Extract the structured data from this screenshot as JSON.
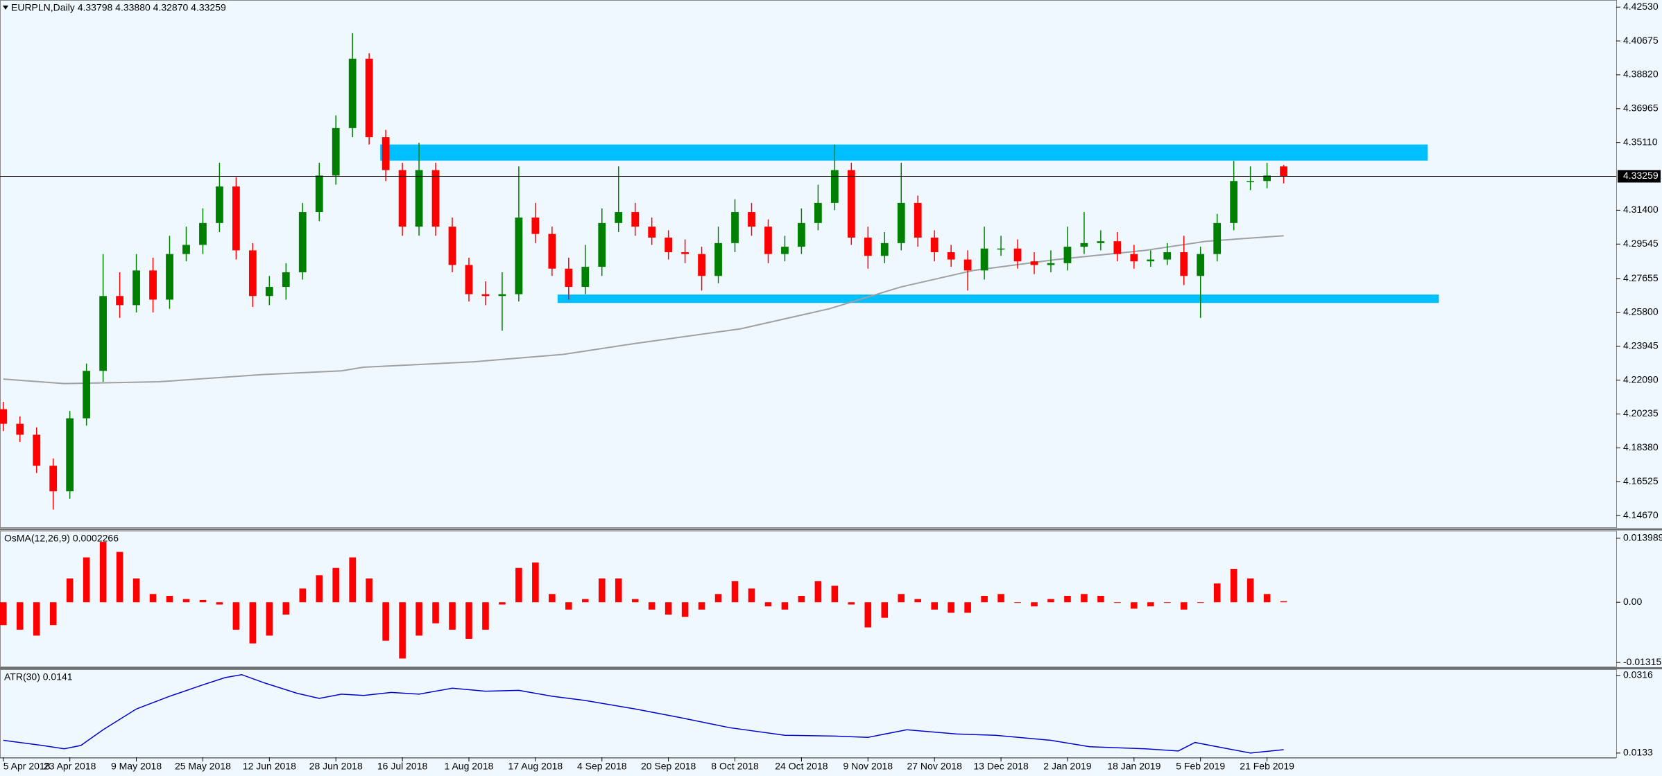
{
  "chart_data": [
    {
      "type": "candlestick",
      "legend": "EURPLN,Daily  4.33798 4.33880 4.32870 4.33259",
      "x": [
        0,
        3,
        6,
        9,
        12,
        15,
        18,
        21,
        24,
        27,
        30,
        33,
        36,
        39,
        42,
        45,
        48,
        51,
        54,
        57,
        60,
        63,
        66,
        69,
        72,
        75,
        78,
        81,
        84,
        87,
        90,
        93,
        96,
        99,
        102,
        105,
        108,
        111,
        114,
        117,
        120,
        123,
        126,
        129,
        132,
        135,
        138,
        141,
        144,
        147,
        150,
        153,
        156,
        159,
        162,
        165,
        168,
        171,
        174,
        177,
        180,
        183,
        186,
        189,
        192,
        195,
        198,
        201,
        204,
        207,
        210,
        213,
        216,
        219,
        222,
        225,
        228,
        231
      ],
      "open": [
        4.205,
        4.197,
        4.191,
        4.174,
        4.16,
        4.2,
        4.226,
        4.267,
        4.262,
        4.281,
        4.265,
        4.29,
        4.295,
        4.307,
        4.327,
        4.292,
        4.267,
        4.272,
        4.28,
        4.313,
        4.333,
        4.359,
        4.397,
        4.354,
        4.336,
        4.305,
        4.336,
        4.305,
        4.284,
        4.268,
        4.267,
        4.268,
        4.31,
        4.301,
        4.282,
        4.272,
        4.283,
        4.307,
        4.313,
        4.305,
        4.299,
        4.291,
        4.29,
        4.278,
        4.296,
        4.313,
        4.305,
        4.29,
        4.294,
        4.307,
        4.318,
        4.336,
        4.299,
        4.289,
        4.296,
        4.318,
        4.299,
        4.291,
        4.287,
        4.281,
        4.293,
        4.293,
        4.286,
        4.284,
        4.285,
        4.294,
        4.296,
        4.297,
        4.29,
        4.286,
        4.287,
        4.291,
        4.278,
        4.29,
        4.307,
        4.33,
        4.33,
        4.33798
      ],
      "high": [
        4.209,
        4.201,
        4.195,
        4.178,
        4.204,
        4.23,
        4.29,
        4.28,
        4.29,
        4.288,
        4.3,
        4.305,
        4.315,
        4.34,
        4.332,
        4.296,
        4.278,
        4.285,
        4.318,
        4.34,
        4.366,
        4.411,
        4.4,
        4.358,
        4.34,
        4.351,
        4.34,
        4.31,
        4.288,
        4.275,
        4.28,
        4.338,
        4.318,
        4.305,
        4.288,
        4.295,
        4.315,
        4.338,
        4.318,
        4.31,
        4.303,
        4.298,
        4.294,
        4.305,
        4.32,
        4.318,
        4.309,
        4.3,
        4.315,
        4.328,
        4.35,
        4.34,
        4.305,
        4.302,
        4.34,
        4.322,
        4.303,
        4.295,
        4.292,
        4.305,
        4.3,
        4.298,
        4.291,
        4.292,
        4.305,
        4.313,
        4.303,
        4.302,
        4.295,
        4.292,
        4.296,
        4.3,
        4.294,
        4.312,
        4.341,
        4.338,
        4.34,
        4.3388
      ],
      "low": [
        4.193,
        4.187,
        4.17,
        4.15,
        4.156,
        4.196,
        4.22,
        4.255,
        4.258,
        4.258,
        4.26,
        4.286,
        4.29,
        4.302,
        4.287,
        4.261,
        4.262,
        4.265,
        4.276,
        4.308,
        4.328,
        4.354,
        4.35,
        4.33,
        4.3,
        4.3,
        4.3,
        4.28,
        4.264,
        4.262,
        4.248,
        4.264,
        4.296,
        4.278,
        4.265,
        4.268,
        4.278,
        4.302,
        4.3,
        4.295,
        4.287,
        4.285,
        4.27,
        4.274,
        4.291,
        4.3,
        4.285,
        4.286,
        4.29,
        4.303,
        4.314,
        4.295,
        4.282,
        4.285,
        4.292,
        4.294,
        4.286,
        4.283,
        4.27,
        4.276,
        4.289,
        4.282,
        4.279,
        4.28,
        4.281,
        4.29,
        4.292,
        4.286,
        4.282,
        4.283,
        4.284,
        4.273,
        4.255,
        4.286,
        4.303,
        4.325,
        4.326,
        4.3287
      ],
      "close": [
        4.197,
        4.191,
        4.174,
        4.16,
        4.2,
        4.226,
        4.267,
        4.262,
        4.281,
        4.265,
        4.29,
        4.295,
        4.307,
        4.327,
        4.292,
        4.267,
        4.272,
        4.28,
        4.313,
        4.333,
        4.359,
        4.397,
        4.354,
        4.336,
        4.305,
        4.336,
        4.305,
        4.284,
        4.268,
        4.267,
        4.268,
        4.31,
        4.301,
        4.282,
        4.272,
        4.283,
        4.307,
        4.313,
        4.305,
        4.299,
        4.291,
        4.29,
        4.278,
        4.296,
        4.313,
        4.305,
        4.29,
        4.294,
        4.307,
        4.318,
        4.336,
        4.299,
        4.289,
        4.296,
        4.318,
        4.299,
        4.291,
        4.287,
        4.281,
        4.293,
        4.293,
        4.286,
        4.284,
        4.285,
        4.294,
        4.296,
        4.297,
        4.29,
        4.286,
        4.287,
        4.291,
        4.278,
        4.29,
        4.307,
        4.33,
        4.33,
        4.333,
        4.33259
      ],
      "up_color": "#008000",
      "down_color": "#ff0000",
      "ma": {
        "x": [
          0,
          11,
          28,
          47,
          61,
          65,
          85,
          101,
          114,
          133,
          149,
          162,
          175,
          190,
          206,
          217,
          231
        ],
        "values": [
          4.2215,
          4.219,
          4.22,
          4.224,
          4.226,
          4.228,
          4.231,
          4.235,
          4.241,
          4.249,
          4.26,
          4.272,
          4.281,
          4.287,
          4.292,
          4.297,
          4.3
        ],
        "color": "#a0a0a0"
      },
      "zones": [
        {
          "x": [
            68,
            257
          ],
          "y": [
            4.3412,
            4.35
          ]
        },
        {
          "x": [
            100,
            259
          ],
          "y": [
            4.2632,
            4.2678
          ]
        }
      ],
      "zone_color": "#00bfff",
      "last_price": {
        "value": 4.33259,
        "label": "4.33259"
      },
      "xlim": [
        -0.6,
        291
      ],
      "ylim": [
        4.1403,
        4.4288
      ],
      "yticks": [
        {
          "value": 4.4253,
          "label": "4.42530"
        },
        {
          "value": 4.40675,
          "label": "4.40675"
        },
        {
          "value": 4.3882,
          "label": "4.38820"
        },
        {
          "value": 4.36965,
          "label": "4.36965"
        },
        {
          "value": 4.3511,
          "label": "4.35110"
        },
        {
          "value": 4.314,
          "label": "4.31400"
        },
        {
          "value": 4.29545,
          "label": "4.29545"
        },
        {
          "value": 4.27655,
          "label": "4.27655"
        },
        {
          "value": 4.258,
          "label": "4.25800"
        },
        {
          "value": 4.23945,
          "label": "4.23945"
        },
        {
          "value": 4.2209,
          "label": "4.22090"
        },
        {
          "value": 4.20235,
          "label": "4.20235"
        },
        {
          "value": 4.1838,
          "label": "4.18380"
        },
        {
          "value": 4.16525,
          "label": "4.16525"
        },
        {
          "value": 4.1467,
          "label": "4.14670"
        }
      ]
    },
    {
      "type": "histogram",
      "title": "OsMA(12,26,9) 0.0002266",
      "x": [
        0,
        3,
        6,
        9,
        12,
        15,
        18,
        21,
        24,
        27,
        30,
        33,
        36,
        39,
        42,
        45,
        48,
        51,
        54,
        57,
        60,
        63,
        66,
        69,
        72,
        75,
        78,
        81,
        84,
        87,
        90,
        93,
        96,
        99,
        102,
        105,
        108,
        111,
        114,
        117,
        120,
        123,
        126,
        129,
        132,
        135,
        138,
        141,
        144,
        147,
        150,
        153,
        156,
        159,
        162,
        165,
        168,
        171,
        174,
        177,
        180,
        183,
        186,
        189,
        192,
        195,
        198,
        201,
        204,
        207,
        210,
        213,
        216,
        219,
        222,
        225,
        228,
        231
      ],
      "values": [
        -0.005,
        -0.006,
        -0.0073,
        -0.005,
        0.0052,
        0.0098,
        0.0132,
        0.011,
        0.0052,
        0.0018,
        0.0014,
        0.0007,
        0.0005,
        -0.0005,
        -0.006,
        -0.009,
        -0.0073,
        -0.0027,
        0.003,
        0.0059,
        0.0075,
        0.0098,
        0.0052,
        -0.0084,
        -0.0123,
        -0.0073,
        -0.0046,
        -0.006,
        -0.008,
        -0.006,
        -0.0005,
        0.0075,
        0.0087,
        0.0018,
        -0.0016,
        0.0007,
        0.0052,
        0.0052,
        0.0007,
        -0.0016,
        -0.0027,
        -0.0032,
        -0.0016,
        0.0018,
        0.0046,
        0.003,
        -0.0009,
        -0.0016,
        0.0014,
        0.0046,
        0.0036,
        -0.0005,
        -0.0055,
        -0.0034,
        0.0018,
        0.0007,
        -0.0016,
        -0.0023,
        -0.0023,
        0.0014,
        0.0018,
        0,
        -0.0009,
        0.0007,
        0.0014,
        0.0018,
        0.0014,
        0,
        -0.0014,
        -0.0009,
        0,
        -0.0016,
        0,
        0.0041,
        0.0073,
        0.0052,
        0.0018,
        0.0002266
      ],
      "color": "#ff0000",
      "xlim": [
        -0.6,
        291
      ],
      "ylim": [
        -0.01405,
        0.01548
      ],
      "yticks": [
        0.0139894,
        {
          "value": 0,
          "label": "0.00"
        },
        -0.013159
      ]
    },
    {
      "type": "line",
      "title": "ATR(30) 0.0141",
      "x": [
        0,
        7,
        11,
        14,
        18,
        24,
        30,
        36,
        40,
        43,
        47,
        53,
        57,
        61,
        65,
        70,
        75,
        81,
        87,
        93,
        99,
        105,
        114,
        122,
        131,
        141,
        150,
        156,
        163,
        172,
        179,
        189,
        196,
        206,
        212,
        215,
        219,
        225,
        231
      ],
      "values": [
        0.0163,
        0.0151,
        0.0143,
        0.0151,
        0.0188,
        0.0237,
        0.0267,
        0.0294,
        0.0311,
        0.0318,
        0.0299,
        0.0274,
        0.0262,
        0.0272,
        0.0269,
        0.0276,
        0.0272,
        0.0286,
        0.0279,
        0.0281,
        0.0267,
        0.0257,
        0.0237,
        0.0217,
        0.0193,
        0.0175,
        0.0173,
        0.017,
        0.0188,
        0.0178,
        0.0175,
        0.0163,
        0.0148,
        0.0143,
        0.0138,
        0.0158,
        0.0148,
        0.0133,
        0.0141
      ],
      "color": "#0000cc",
      "xlim": [
        -0.6,
        291
      ],
      "ylim": [
        0.0123,
        0.0329
      ],
      "yticks": [
        0.0316,
        0.0133
      ],
      "xticks": [
        {
          "value": 0,
          "label": "5 Apr 2018"
        },
        {
          "value": 12,
          "label": "23 Apr 2018"
        },
        {
          "value": 24,
          "label": "9 May 2018"
        },
        {
          "value": 36,
          "label": "25 May 2018"
        },
        {
          "value": 48,
          "label": "12 Jun 2018"
        },
        {
          "value": 60,
          "label": "28 Jun 2018"
        },
        {
          "value": 72,
          "label": "16 Jul 2018"
        },
        {
          "value": 84,
          "label": "1 Aug 2018"
        },
        {
          "value": 96,
          "label": "17 Aug 2018"
        },
        {
          "value": 108,
          "label": "4 Sep 2018"
        },
        {
          "value": 120,
          "label": "20 Sep 2018"
        },
        {
          "value": 132,
          "label": "8 Oct 2018"
        },
        {
          "value": 144,
          "label": "24 Oct 2018"
        },
        {
          "value": 156,
          "label": "9 Nov 2018"
        },
        {
          "value": 168,
          "label": "27 Nov 2018"
        },
        {
          "value": 180,
          "label": "13 Dec 2018"
        },
        {
          "value": 192,
          "label": "2 Jan 2019"
        },
        {
          "value": 204,
          "label": "18 Jan 2019"
        },
        {
          "value": 216,
          "label": "5 Feb 2019"
        },
        {
          "value": 228,
          "label": "21 Feb 2019"
        }
      ]
    }
  ]
}
